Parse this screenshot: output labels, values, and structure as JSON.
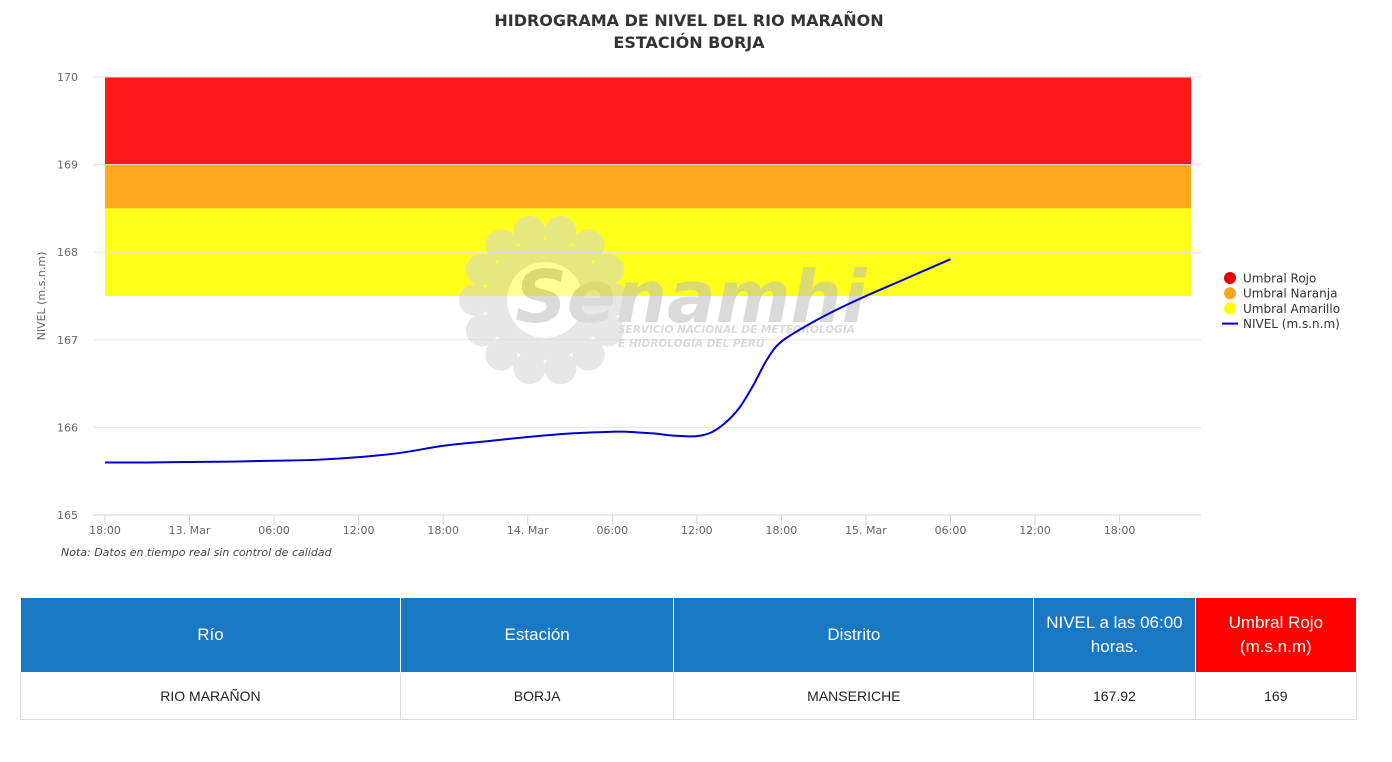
{
  "chart_data": {
    "type": "line",
    "title": "HIDROGRAMA DE NIVEL DEL RIO MARAÑON",
    "subtitle": "ESTACIÓN BORJA",
    "ylabel": "NIVEL (m.s.n.m)",
    "xlabel": "",
    "ylim": [
      165,
      170
    ],
    "yticks": [
      "165",
      "166",
      "167",
      "168",
      "169",
      "170"
    ],
    "xrange_hours": [
      0,
      66
    ],
    "xticks": [
      {
        "h": 0,
        "label": "18:00"
      },
      {
        "h": 6,
        "label": "13. Mar"
      },
      {
        "h": 12,
        "label": "06:00"
      },
      {
        "h": 18,
        "label": "12:00"
      },
      {
        "h": 24,
        "label": "18:00"
      },
      {
        "h": 30,
        "label": "14. Mar"
      },
      {
        "h": 36,
        "label": "06:00"
      },
      {
        "h": 42,
        "label": "12:00"
      },
      {
        "h": 48,
        "label": "18:00"
      },
      {
        "h": 54,
        "label": "15. Mar"
      },
      {
        "h": 60,
        "label": "06:00"
      },
      {
        "h": 66,
        "label": "12:00"
      },
      {
        "h": 72,
        "label": "18:00"
      }
    ],
    "bands": [
      {
        "name": "Umbral Rojo",
        "from": 169,
        "to": 170,
        "color": "#ff1a1a"
      },
      {
        "name": "Umbral Naranja",
        "from": 168.5,
        "to": 169,
        "color": "#ffa91a"
      },
      {
        "name": "Umbral Amarillo",
        "from": 167.5,
        "to": 168.5,
        "color": "#ffff1a"
      }
    ],
    "series": [
      {
        "name": "NIVEL (m.s.n.m)",
        "color": "#0000cc",
        "x": [
          0,
          3,
          6,
          9,
          12,
          15,
          18,
          21,
          24,
          27,
          30,
          33,
          36,
          37,
          39,
          40,
          41,
          42,
          43,
          44,
          45,
          46,
          47,
          48,
          50,
          52,
          54,
          56,
          58,
          60
        ],
        "values": [
          165.6,
          165.6,
          165.605,
          165.61,
          165.62,
          165.63,
          165.66,
          165.71,
          165.79,
          165.84,
          165.89,
          165.93,
          165.95,
          165.95,
          165.93,
          165.91,
          165.9,
          165.9,
          165.94,
          166.05,
          166.22,
          166.48,
          166.78,
          166.98,
          167.18,
          167.35,
          167.5,
          167.64,
          167.78,
          167.92
        ]
      }
    ],
    "legend_position": "right",
    "legend": [
      {
        "label": "Umbral Rojo",
        "color": "#e60000",
        "kind": "dot"
      },
      {
        "label": "Umbral Naranja",
        "color": "#f5a623",
        "kind": "dot"
      },
      {
        "label": "Umbral Amarillo",
        "color": "#ffff00",
        "kind": "dot"
      },
      {
        "label": "NIVEL (m.s.n.m)",
        "color": "#0000cc",
        "kind": "line"
      }
    ]
  },
  "watermark": {
    "brand": "Senamhi",
    "line1": "SERVICIO NACIONAL DE METEOROLOGÍA",
    "line2": "E HIDROLOGÍA DEL PERÚ"
  },
  "note": "Nota: Datos en tiempo real sin control de calidad",
  "table": {
    "headers": [
      "Río",
      "Estación",
      "Distrito",
      "NIVEL a las 06:00 horas.",
      "Umbral Rojo (m.s.n.m)"
    ],
    "header_colors": [
      "#1878c2",
      "#1878c2",
      "#1878c2",
      "#1878c2",
      "#ff0000"
    ],
    "rows": [
      [
        "RIO MARAÑON",
        "BORJA",
        "MANSERICHE",
        "167.92",
        "169"
      ]
    ]
  }
}
